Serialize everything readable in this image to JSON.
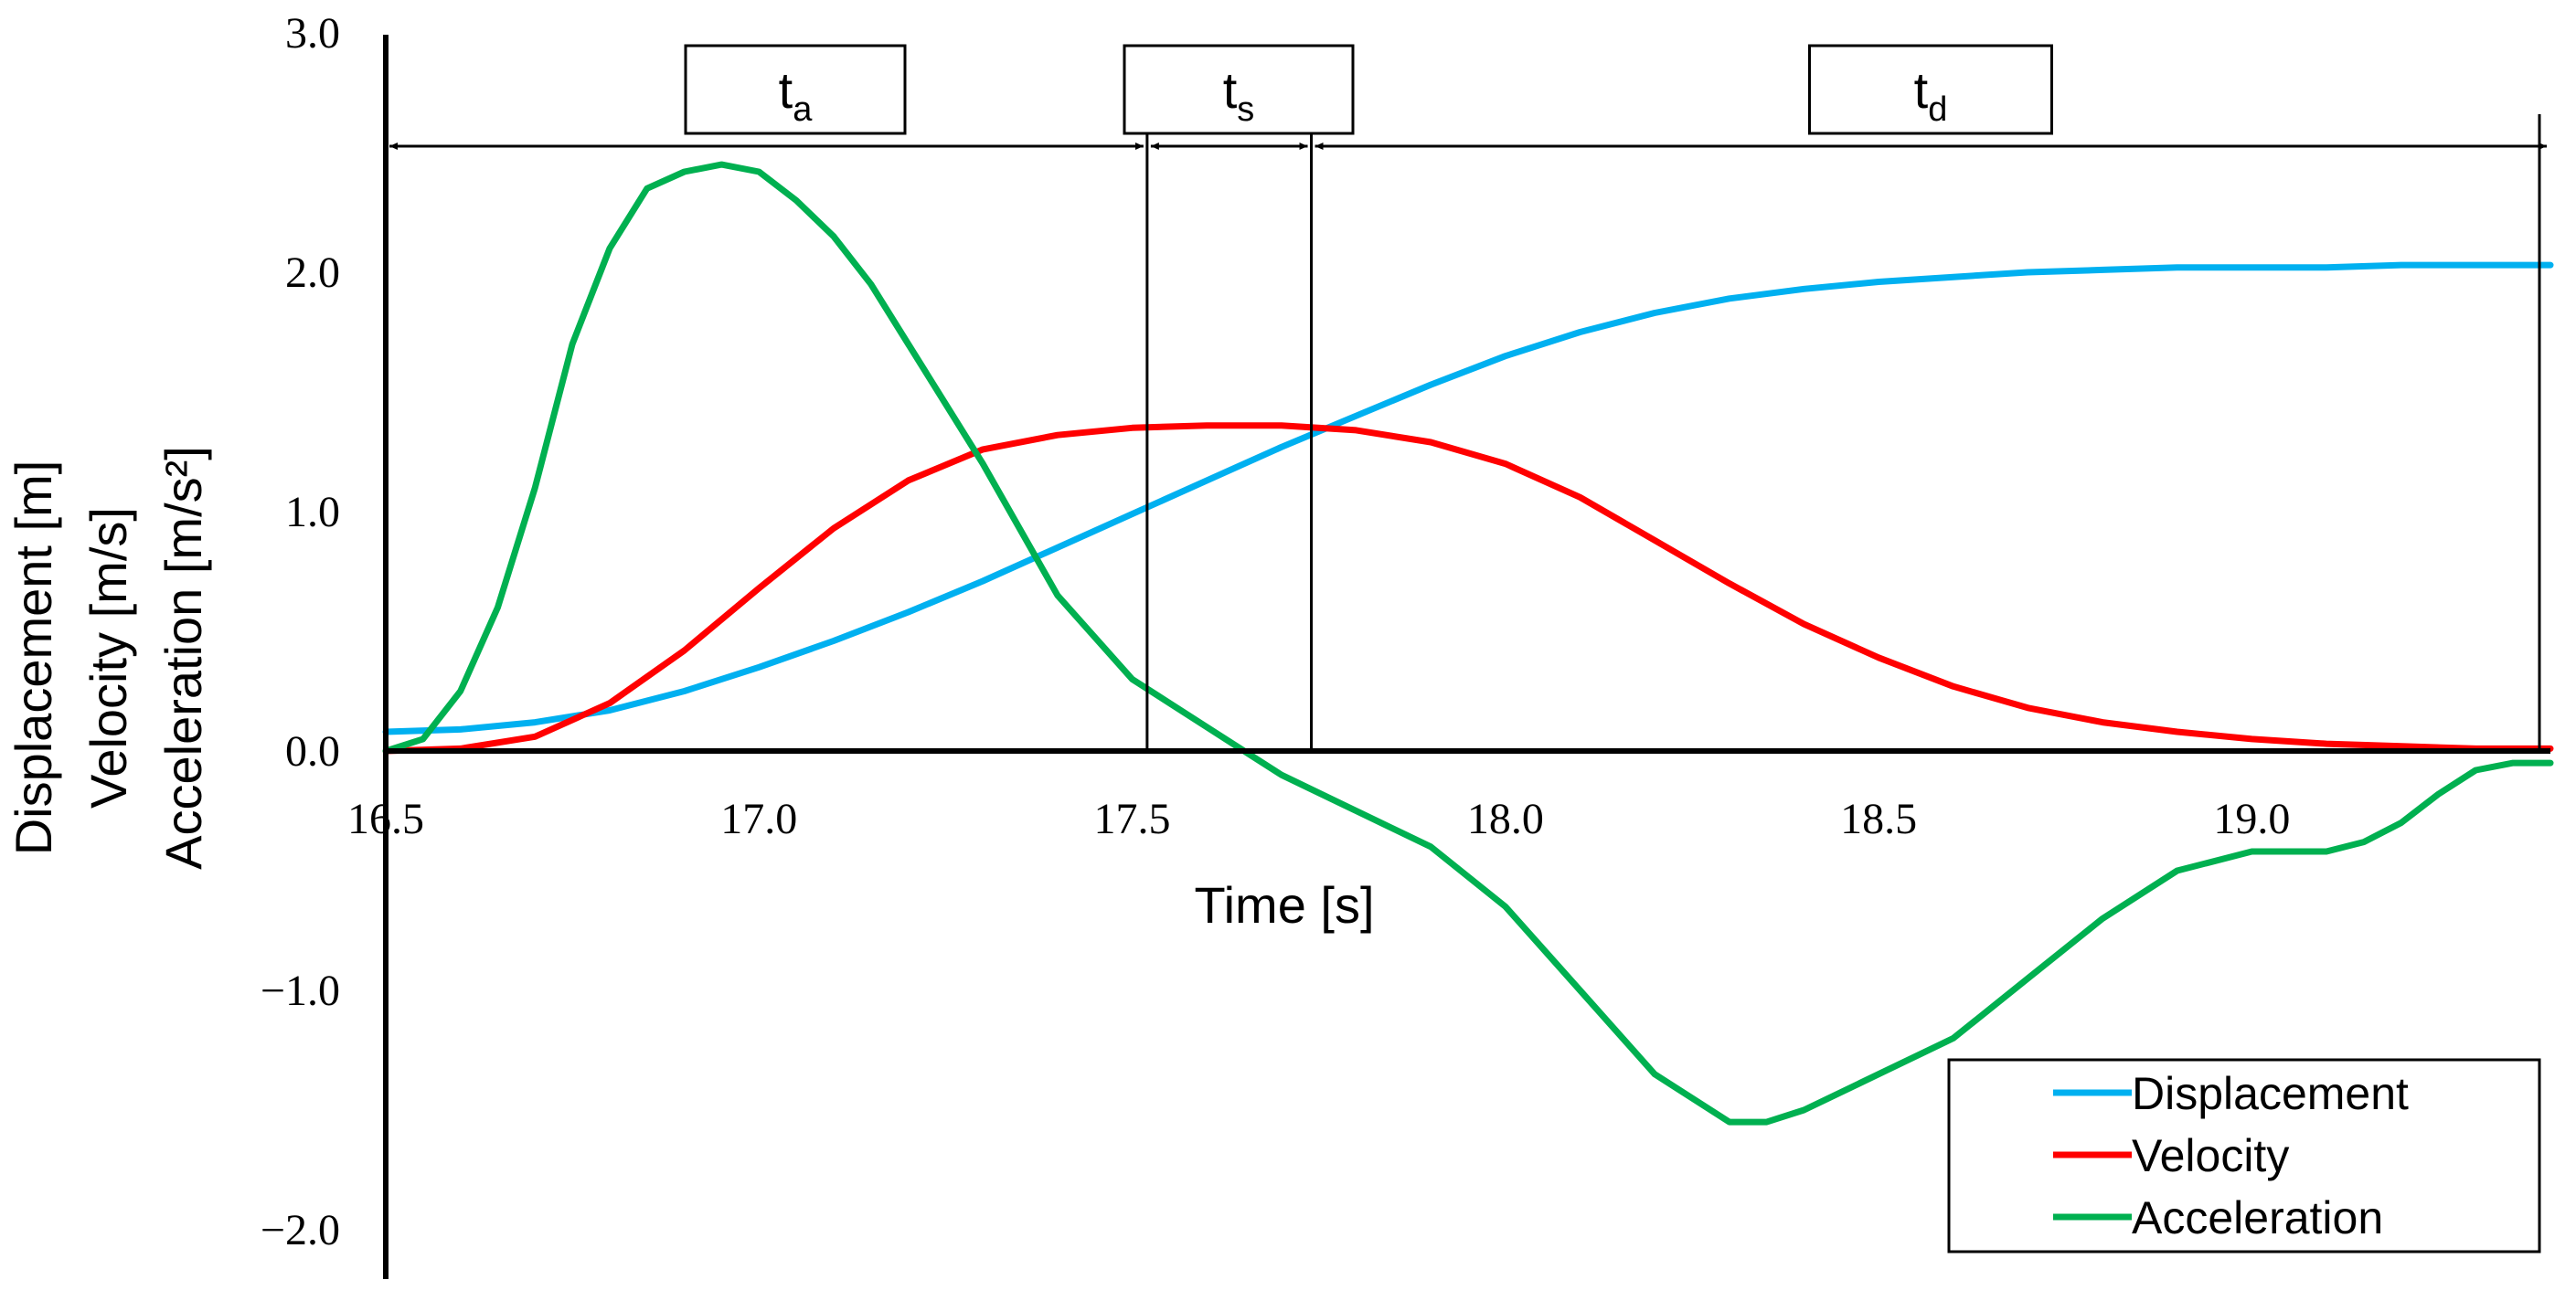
{
  "chart_data": {
    "type": "line",
    "xlabel": "Time [s]",
    "ylabel_lines": [
      "Displacement [m]",
      "Velocity [m/s]",
      "Acceleration [m/s²]"
    ],
    "xlim": [
      16.5,
      19.4
    ],
    "ylim": [
      -2.2,
      3.0
    ],
    "x_ticks": [
      "16.5",
      "17.0",
      "17.5",
      "18.0",
      "18.5",
      "19.0"
    ],
    "x_tick_values": [
      16.5,
      17.0,
      17.5,
      18.0,
      18.5,
      19.0
    ],
    "y_ticks": [
      "3.0",
      "2.0",
      "1.0",
      "0.0",
      "−1.0",
      "−2.0"
    ],
    "y_tick_values": [
      3.0,
      2.0,
      1.0,
      0.0,
      -1.0,
      -2.0
    ],
    "grid": false,
    "legend_position": "bottom-right",
    "series": [
      {
        "name": "Displacement",
        "color": "#00B0F0",
        "x": [
          16.5,
          16.6,
          16.7,
          16.8,
          16.9,
          17.0,
          17.1,
          17.2,
          17.3,
          17.4,
          17.5,
          17.6,
          17.7,
          17.8,
          17.9,
          18.0,
          18.1,
          18.2,
          18.3,
          18.4,
          18.5,
          18.6,
          18.7,
          18.8,
          18.9,
          19.0,
          19.1,
          19.2,
          19.3,
          19.4
        ],
        "y": [
          0.08,
          0.09,
          0.12,
          0.17,
          0.25,
          0.35,
          0.46,
          0.58,
          0.71,
          0.85,
          0.99,
          1.13,
          1.27,
          1.4,
          1.53,
          1.65,
          1.75,
          1.83,
          1.89,
          1.93,
          1.96,
          1.98,
          2.0,
          2.01,
          2.02,
          2.02,
          2.02,
          2.03,
          2.03,
          2.03
        ]
      },
      {
        "name": "Velocity",
        "color": "#FF0000",
        "x": [
          16.5,
          16.6,
          16.7,
          16.8,
          16.9,
          17.0,
          17.1,
          17.2,
          17.3,
          17.4,
          17.5,
          17.6,
          17.7,
          17.8,
          17.9,
          18.0,
          18.1,
          18.2,
          18.3,
          18.4,
          18.5,
          18.6,
          18.7,
          18.8,
          18.9,
          19.0,
          19.1,
          19.2,
          19.3,
          19.4
        ],
        "y": [
          0.0,
          0.01,
          0.06,
          0.2,
          0.42,
          0.68,
          0.93,
          1.13,
          1.26,
          1.32,
          1.35,
          1.36,
          1.36,
          1.34,
          1.29,
          1.2,
          1.06,
          0.88,
          0.7,
          0.53,
          0.39,
          0.27,
          0.18,
          0.12,
          0.08,
          0.05,
          0.03,
          0.02,
          0.01,
          0.01
        ]
      },
      {
        "name": "Acceleration",
        "color": "#00B050",
        "x": [
          16.5,
          16.55,
          16.6,
          16.65,
          16.7,
          16.75,
          16.8,
          16.85,
          16.9,
          16.95,
          17.0,
          17.05,
          17.1,
          17.15,
          17.2,
          17.3,
          17.4,
          17.5,
          17.6,
          17.65,
          17.7,
          17.8,
          17.9,
          18.0,
          18.1,
          18.2,
          18.3,
          18.35,
          18.4,
          18.5,
          18.6,
          18.7,
          18.8,
          18.9,
          19.0,
          19.05,
          19.1,
          19.15,
          19.2,
          19.25,
          19.3,
          19.35,
          19.4
        ],
        "y": [
          0.0,
          0.05,
          0.25,
          0.6,
          1.1,
          1.7,
          2.1,
          2.35,
          2.42,
          2.45,
          2.42,
          2.3,
          2.15,
          1.95,
          1.7,
          1.2,
          0.65,
          0.3,
          0.1,
          0.0,
          -0.1,
          -0.25,
          -0.4,
          -0.65,
          -1.0,
          -1.35,
          -1.55,
          -1.55,
          -1.5,
          -1.35,
          -1.2,
          -0.95,
          -0.7,
          -0.5,
          -0.42,
          -0.42,
          -0.42,
          -0.38,
          -0.3,
          -0.18,
          -0.08,
          -0.05,
          -0.05
        ]
      }
    ],
    "phases": [
      {
        "label": "t",
        "sub": "a",
        "start": 16.5,
        "end": 17.52
      },
      {
        "label": "t",
        "sub": "s",
        "start": 17.52,
        "end": 17.74
      },
      {
        "label": "t",
        "sub": "d",
        "start": 17.74,
        "end": 19.4
      }
    ]
  }
}
